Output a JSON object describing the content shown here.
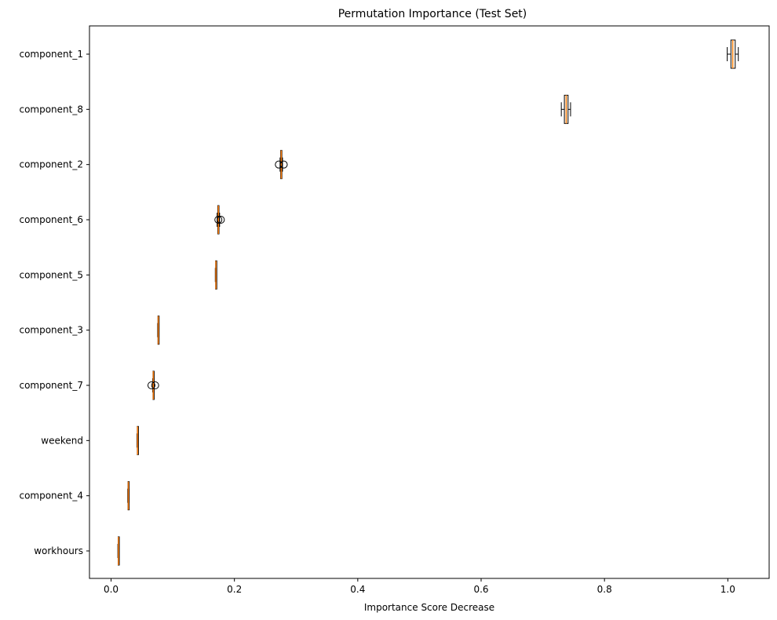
{
  "chart_data": {
    "type": "boxplot",
    "orientation": "horizontal",
    "title": "Permutation Importance (Test Set)",
    "xlabel": "Importance Score Decrease",
    "ylabel": "",
    "xlim": [
      -0.035,
      1.067
    ],
    "xticks": [
      0.0,
      0.2,
      0.4,
      0.6,
      0.8,
      1.0
    ],
    "xtick_labels": [
      "0.0",
      "0.2",
      "0.4",
      "0.6",
      "0.8",
      "1.0"
    ],
    "grid": false,
    "colors": {
      "box": "#000000",
      "median": "#ff7f0e",
      "background": "#ffffff"
    },
    "categories": [
      "component_1",
      "component_8",
      "component_2",
      "component_6",
      "component_5",
      "component_3",
      "component_7",
      "weekend",
      "component_4",
      "workhours"
    ],
    "boxes": [
      {
        "label": "component_1",
        "whisker_low": 0.999,
        "q1": 1.005,
        "median": 1.008,
        "q3": 1.012,
        "whisker_high": 1.017,
        "outliers": []
      },
      {
        "label": "component_8",
        "whisker_low": 0.73,
        "q1": 0.735,
        "median": 0.738,
        "q3": 0.741,
        "whisker_high": 0.745,
        "outliers": []
      },
      {
        "label": "component_2",
        "whisker_low": 0.274,
        "q1": 0.275,
        "median": 0.276,
        "q3": 0.277,
        "whisker_high": 0.278,
        "outliers": [
          0.272,
          0.28
        ]
      },
      {
        "label": "component_6",
        "whisker_low": 0.172,
        "q1": 0.173,
        "median": 0.174,
        "q3": 0.175,
        "whisker_high": 0.176,
        "outliers": [
          0.174,
          0.178
        ]
      },
      {
        "label": "component_5",
        "whisker_low": 0.169,
        "q1": 0.1695,
        "median": 0.17,
        "q3": 0.1705,
        "whisker_high": 0.171,
        "outliers": []
      },
      {
        "label": "component_3",
        "whisker_low": 0.0755,
        "q1": 0.076,
        "median": 0.0765,
        "q3": 0.077,
        "whisker_high": 0.0775,
        "outliers": []
      },
      {
        "label": "component_7",
        "whisker_low": 0.0675,
        "q1": 0.068,
        "median": 0.0685,
        "q3": 0.069,
        "whisker_high": 0.0695,
        "outliers": [
          0.0655,
          0.0715
        ]
      },
      {
        "label": "weekend",
        "whisker_low": 0.042,
        "q1": 0.0425,
        "median": 0.043,
        "q3": 0.0435,
        "whisker_high": 0.044,
        "outliers": []
      },
      {
        "label": "component_4",
        "whisker_low": 0.027,
        "q1": 0.0275,
        "median": 0.028,
        "q3": 0.0285,
        "whisker_high": 0.029,
        "outliers": []
      },
      {
        "label": "workhours",
        "whisker_low": 0.011,
        "q1": 0.0115,
        "median": 0.012,
        "q3": 0.0125,
        "whisker_high": 0.013,
        "outliers": []
      }
    ]
  }
}
